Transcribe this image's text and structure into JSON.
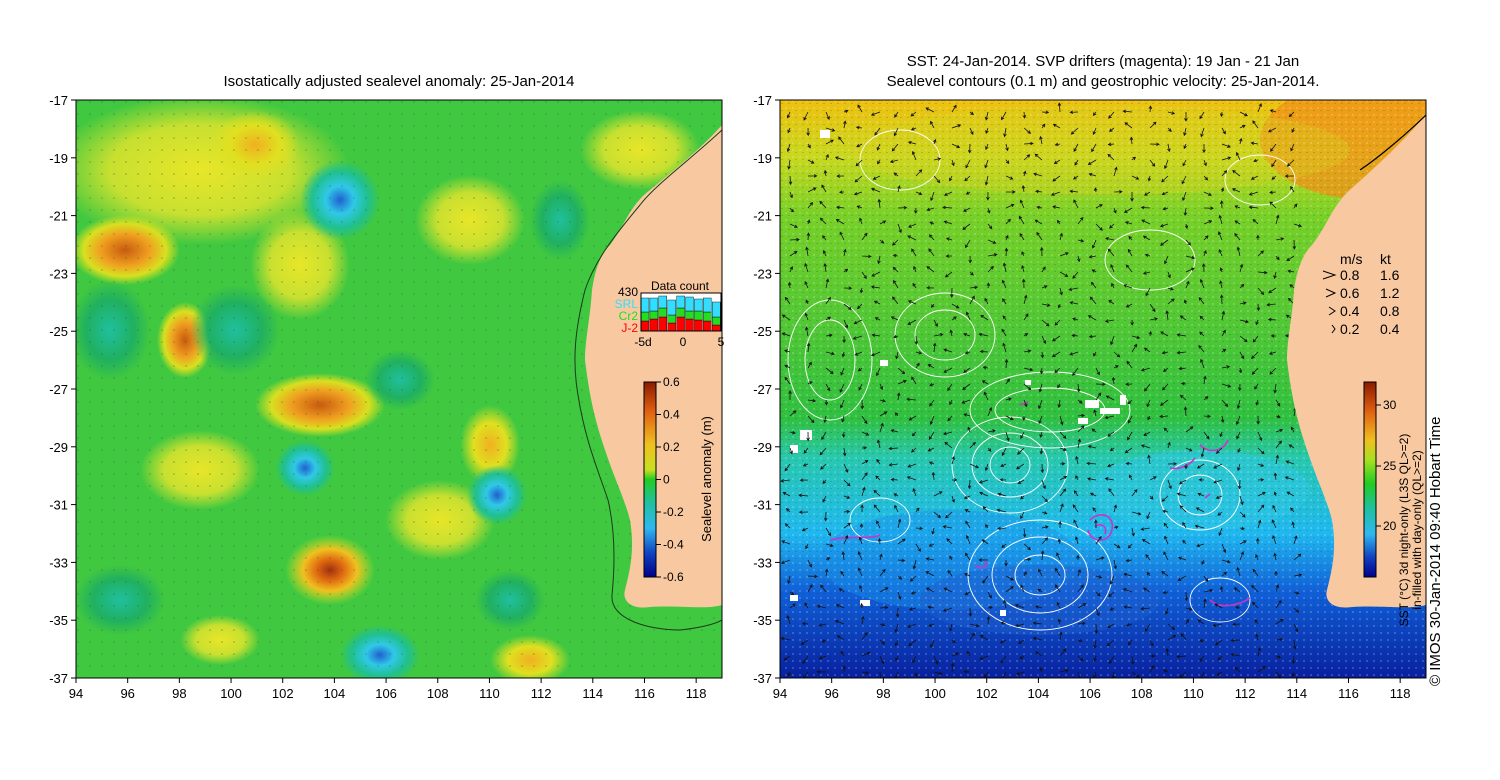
{
  "left_panel": {
    "title": "Isostatically adjusted sealevel anomaly: 25-Jan-2014",
    "colorbar": {
      "label": "Sealevel anomaly (m)",
      "ticks": [
        "0.6",
        "0.4",
        "0.2",
        "0",
        "-0.2",
        "-0.4",
        "-0.6"
      ]
    },
    "data_count": {
      "title": "Data count",
      "count": "430",
      "legend": [
        {
          "label": "SRL",
          "color": "#33ddff"
        },
        {
          "label": "Cr2",
          "color": "#22dd22"
        },
        {
          "label": "J-2",
          "color": "#ff0000"
        }
      ],
      "axis_ticks": [
        "-5d",
        "0",
        "5"
      ]
    }
  },
  "right_panel": {
    "title_line1": "SST: 24-Jan-2014. SVP drifters (magenta): 19 Jan - 21 Jan",
    "title_line2": "Sealevel contours (0.1 m) and geostrophic velocity: 25-Jan-2014.",
    "colorbar": {
      "label_line1": "SST (°C) 3d night-only (L3S QL>=2)",
      "label_line2": "in-filled with day-only (QL>=2)",
      "ticks": [
        "30",
        "25",
        "20"
      ]
    },
    "velocity_legend": {
      "header_ms": "m/s",
      "header_kt": "kt",
      "rows": [
        {
          "ms": "0.8",
          "kt": "1.6"
        },
        {
          "ms": "0.6",
          "kt": "1.2"
        },
        {
          "ms": "0.4",
          "kt": "0.8"
        },
        {
          "ms": "0.2",
          "kt": "0.4"
        }
      ]
    }
  },
  "axes": {
    "x_ticks": [
      "94",
      "96",
      "98",
      "100",
      "102",
      "104",
      "106",
      "108",
      "110",
      "112",
      "114",
      "116",
      "118"
    ],
    "y_ticks": [
      "-17",
      "-19",
      "-21",
      "-23",
      "-25",
      "-27",
      "-29",
      "-31",
      "-33",
      "-35",
      "-37"
    ],
    "lon_range": [
      94,
      119
    ],
    "lat_range": [
      -37,
      -17
    ]
  },
  "copyright": "© IMOS 30-Jan-2014 09:40 Hobart Time",
  "colors": {
    "land": "#f8c9a0",
    "sla_low": "#00008b",
    "sla_mid": "#22cc22",
    "sla_high": "#8b1a00",
    "contour": "#ffffff",
    "drifter": "#cc33cc"
  }
}
